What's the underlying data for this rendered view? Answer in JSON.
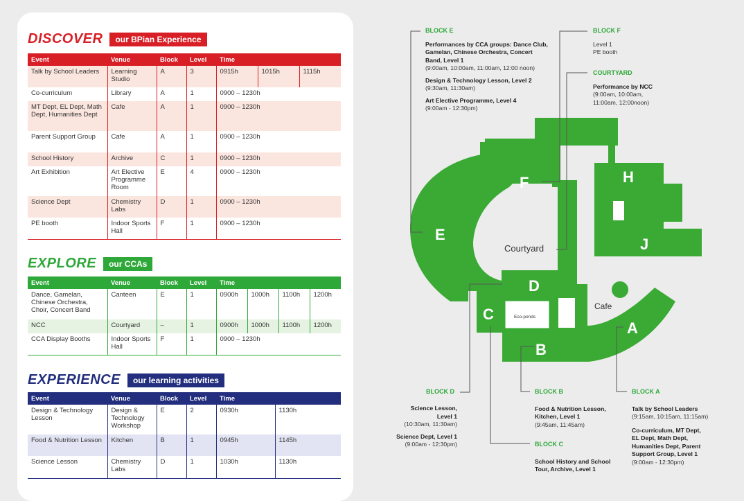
{
  "discover": {
    "title": "DISCOVER",
    "badge": "our BPian Experience",
    "headers": [
      "Event",
      "Venue",
      "Block",
      "Level",
      "Time"
    ],
    "rows": [
      {
        "event": "Talk by School Leaders",
        "venue": "Learning Studio",
        "block": "A",
        "level": "3",
        "times": [
          "0915h",
          "1015h",
          "1115h"
        ]
      },
      {
        "event": "Co-curriculum",
        "venue": "Library",
        "block": "A",
        "level": "1",
        "times": [
          "0900 – 1230h"
        ]
      },
      {
        "event": "MT Dept, EL Dept, Math Dept, Humanities Dept",
        "venue": "Cafe",
        "block": "A",
        "level": "1",
        "times": [
          "0900 – 1230h"
        ]
      },
      {
        "event": "Parent Support Group",
        "venue": "Cafe",
        "block": "A",
        "level": "1",
        "times": [
          "0900 – 1230h"
        ]
      },
      {
        "event": "School History",
        "venue": "Archive",
        "block": "C",
        "level": "1",
        "times": [
          "0900 – 1230h"
        ]
      },
      {
        "event": "Art Exhibition",
        "venue": "Art Elective Programme Room",
        "block": "E",
        "level": "4",
        "times": [
          "0900 – 1230h"
        ]
      },
      {
        "event": "Science Dept",
        "venue": "Chemistry Labs",
        "block": "D",
        "level": "1",
        "times": [
          "0900 – 1230h"
        ]
      },
      {
        "event": "PE booth",
        "venue": "Indoor Sports Hall",
        "block": "F",
        "level": "1",
        "times": [
          "0900 – 1230h"
        ]
      }
    ]
  },
  "explore": {
    "title": "EXPLORE",
    "badge": "our CCAs",
    "headers": [
      "Event",
      "Venue",
      "Block",
      "Level",
      "Time"
    ],
    "rows": [
      {
        "event": "Dance, Gamelan, Chinese Orchestra, Choir, Concert Band",
        "venue": "Canteen",
        "block": "E",
        "level": "1",
        "times": [
          "0900h",
          "1000h",
          "1100h",
          "1200h"
        ]
      },
      {
        "event": "NCC",
        "venue": "Courtyard",
        "block": "–",
        "level": "1",
        "times": [
          "0900h",
          "1000h",
          "1100h",
          "1200h"
        ]
      },
      {
        "event": "CCA Display Booths",
        "venue": "Indoor Sports Hall",
        "block": "F",
        "level": "1",
        "times": [
          "0900 – 1230h"
        ]
      }
    ]
  },
  "experience": {
    "title": "EXPERIENCE",
    "badge": "our learning activities",
    "headers": [
      "Event",
      "Venue",
      "Block",
      "Level",
      "Time"
    ],
    "rows": [
      {
        "event": "Design & Technology Lesson",
        "venue": "Design & Technology Workshop",
        "block": "E",
        "level": "2",
        "times": [
          "0930h",
          "1130h"
        ]
      },
      {
        "event": "Food & Nutrition Lesson",
        "venue": "Kitchen",
        "block": "B",
        "level": "1",
        "times": [
          "0945h",
          "1145h"
        ]
      },
      {
        "event": "Science Lesson",
        "venue": "Chemistry Labs",
        "block": "D",
        "level": "1",
        "times": [
          "1030h",
          "1130h"
        ]
      }
    ]
  },
  "map": {
    "labels": {
      "E": "E",
      "F": "F",
      "H": "H",
      "J": "J",
      "D": "D",
      "C": "C",
      "B": "B",
      "A": "A",
      "courtyard": "Courtyard",
      "cafe": "Cafe",
      "ecoponds": "Eco-ponds"
    },
    "annotations": {
      "block_e": {
        "label": "BLOCK E",
        "items": [
          {
            "title": "Performances by CCA groups: Dance Club, Gamelan, Chinese Orchestra, Concert Band, Level 1",
            "time": "(9:00am, 10:00am, 11:00am, 12:00 noon)"
          },
          {
            "title": "Design & Technology Lesson, Level 2",
            "time": "(9:30am, 11:30am)"
          },
          {
            "title": "Art Elective Programme, Level 4",
            "time": "(9:00am - 12:30pm)"
          }
        ]
      },
      "block_f": {
        "label": "BLOCK F",
        "line1": "Level 1",
        "line2": "PE booth"
      },
      "courtyard": {
        "label": "COURTYARD",
        "title": "Performance by NCC",
        "time1": "(9:00am, 10:00am,",
        "time2": "11:00am, 12:00noon)"
      },
      "block_d": {
        "label": "BLOCK D",
        "items": [
          {
            "title1": "Science Lesson,",
            "title2": "Level 1",
            "time": "(10:30am, 11:30am)"
          },
          {
            "title1": "Science Dept, Level 1",
            "title2": "",
            "time": "(9:00am - 12:30pm)"
          }
        ]
      },
      "block_b": {
        "label": "BLOCK B",
        "title1": "Food & Nutrition Lesson,",
        "title2": "Kitchen, Level 1",
        "time": "(9:45am, 11:45am)"
      },
      "block_c": {
        "label": "BLOCK C",
        "title1": "School History and School",
        "title2": "Tour, Archive, Level 1"
      },
      "block_a": {
        "label": "BLOCK A",
        "title1": "Talk by School Leaders",
        "time1": "(9:15am, 10:15am, 11:15am)",
        "title2a": "Co-curriculum, MT Dept,",
        "title2b": "EL Dept, Math Dept,",
        "title2c": "Humanities Dept, Parent",
        "title2d": "Support Group, Level 1",
        "time2": "(9:00am - 12:30pm)"
      }
    }
  },
  "colors": {
    "discover": "#d81f26",
    "explore": "#2fa83a",
    "experience": "#232f7e",
    "map_green": "#3aaa35"
  }
}
